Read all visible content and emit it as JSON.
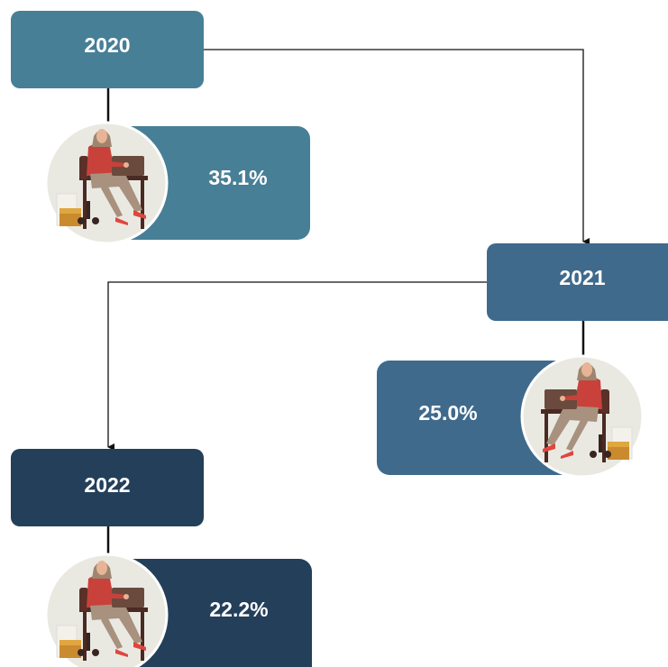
{
  "nodes": [
    {
      "label": "2020",
      "value": "35.1%"
    },
    {
      "label": "2021",
      "value": "25.0%"
    },
    {
      "label": "2022",
      "value": "22.2%"
    }
  ]
}
